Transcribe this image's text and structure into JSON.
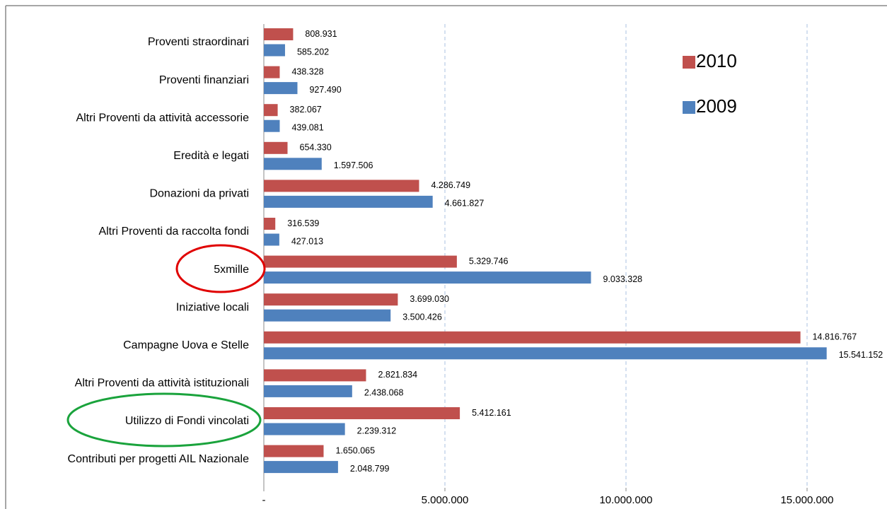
{
  "chart_data": {
    "type": "bar",
    "orientation": "horizontal",
    "categories": [
      "Proventi straordinari",
      "Proventi finanziari",
      "Altri Proventi da attività  accessorie",
      "Eredità e legati",
      "Donazioni da privati",
      "Altri Proventi da raccolta fondi",
      "5xmille",
      "Iniziative locali",
      "Campagne Uova e Stelle",
      "Altri Proventi da attività  istituzionali",
      "Utilizzo di Fondi vincolati",
      "Contributi per progetti AIL Nazionale"
    ],
    "series": [
      {
        "name": "2010",
        "color": "#c0504d",
        "values": [
          808931,
          438328,
          382067,
          654330,
          4286749,
          316539,
          5329746,
          3699030,
          14816767,
          2821834,
          5412161,
          1650065
        ],
        "value_labels": [
          "808.931",
          "438.328",
          "382.067",
          "654.330",
          "4.286.749",
          "316.539",
          "5.329.746",
          "3.699.030",
          "14.816.767",
          "2.821.834",
          "5.412.161",
          "1.650.065"
        ]
      },
      {
        "name": "2009",
        "color": "#4f81bd",
        "values": [
          585202,
          927490,
          439081,
          1597506,
          4661827,
          427013,
          9033328,
          3500426,
          15541152,
          2438068,
          2239312,
          2048799
        ],
        "value_labels": [
          "585.202",
          "927.490",
          "439.081",
          "1.597.506",
          "4.661.827",
          "427.013",
          "9.033.328",
          "3.500.426",
          "15.541.152",
          "2.438.068",
          "2.239.312",
          "2.048.799"
        ]
      }
    ],
    "xlim": [
      0,
      17000000
    ],
    "xticks": [
      {
        "value": 0,
        "label": "-"
      },
      {
        "value": 5000000,
        "label": "5.000.000"
      },
      {
        "value": 10000000,
        "label": "10.000.000"
      },
      {
        "value": 15000000,
        "label": "15.000.000"
      }
    ],
    "grid": true,
    "legend": "upper right"
  }
}
